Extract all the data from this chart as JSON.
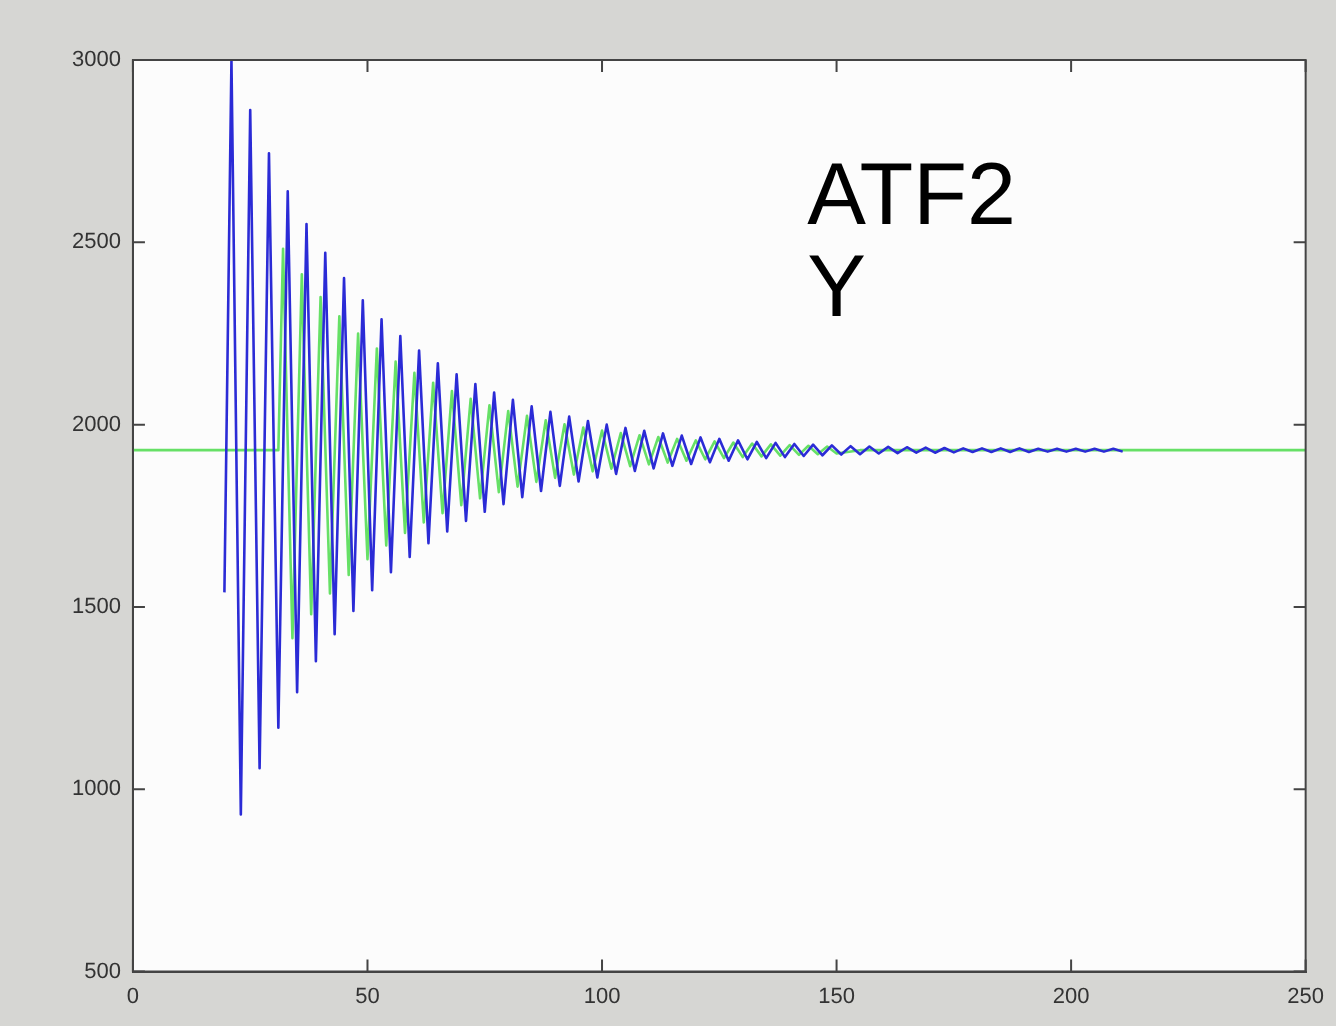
{
  "chart_data": {
    "type": "line",
    "annotations": [
      "ATF2",
      "Y"
    ],
    "xlim": [
      0,
      250
    ],
    "xticks": [
      0,
      50,
      100,
      150,
      200,
      250
    ],
    "ylim": [
      500,
      3000
    ],
    "yticks": [
      500,
      1000,
      1500,
      2000,
      2500,
      3000
    ],
    "grid": false,
    "legend": false,
    "marker": "none",
    "line_style": "solid",
    "series": [
      {
        "color": "#2b2bd6",
        "x": [
          19.5,
          21,
          23,
          25,
          27,
          29,
          31,
          33,
          35,
          37,
          39,
          41,
          43,
          45,
          47,
          49,
          51,
          53,
          55,
          57,
          59,
          61,
          63,
          65,
          67,
          69,
          71,
          73,
          75,
          77,
          79,
          81,
          83,
          85,
          87,
          89,
          91,
          93,
          95,
          97,
          99,
          101,
          103,
          105,
          107,
          109,
          111,
          113,
          115,
          117,
          119,
          121,
          123,
          125,
          127,
          129,
          131,
          133,
          135,
          137,
          139,
          141,
          143,
          145,
          147,
          149,
          151,
          153,
          155,
          157,
          159,
          161,
          163,
          165,
          167,
          169,
          171,
          173,
          175,
          177,
          179,
          181,
          183,
          185,
          187,
          189,
          191,
          193,
          195,
          197,
          199,
          201,
          203,
          205,
          207,
          209,
          211
        ],
        "values": [
          1540,
          3000,
          931,
          2863,
          1058,
          2744,
          1169,
          2640,
          1266,
          2550,
          1351,
          2471,
          1425,
          2402,
          1489,
          2341,
          1546,
          2289,
          1595,
          2243,
          1637,
          2203,
          1675,
          2168,
          1707,
          2138,
          1736,
          2111,
          1761,
          2088,
          1782,
          2068,
          1801,
          2050,
          1818,
          2035,
          1832,
          2022,
          1844,
          2010,
          1855,
          2000,
          1865,
          1991,
          1873,
          1983,
          1880,
          1976,
          1887,
          1970,
          1892,
          1965,
          1897,
          1961,
          1901,
          1957,
          1905,
          1953,
          1908,
          1950,
          1911,
          1947,
          1914,
          1945,
          1916,
          1943,
          1918,
          1941,
          1919,
          1940,
          1921,
          1939,
          1922,
          1938,
          1923,
          1937,
          1923,
          1936,
          1924,
          1935,
          1925,
          1935,
          1925,
          1935,
          1925,
          1935,
          1925,
          1934,
          1926,
          1934,
          1926,
          1934,
          1926,
          1934,
          1926,
          1934,
          1926
        ]
      },
      {
        "color": "#66e066",
        "x": [
          0,
          31,
          32,
          34,
          36,
          38,
          40,
          42,
          44,
          46,
          48,
          50,
          52,
          54,
          56,
          58,
          60,
          62,
          64,
          66,
          68,
          70,
          72,
          74,
          76,
          78,
          80,
          82,
          84,
          86,
          88,
          90,
          92,
          94,
          96,
          98,
          100,
          102,
          104,
          106,
          108,
          110,
          112,
          114,
          116,
          118,
          120,
          122,
          124,
          126,
          128,
          130,
          132,
          134,
          136,
          138,
          140,
          142,
          144,
          146,
          148,
          150,
          155,
          250
        ],
        "values": [
          1930,
          1930,
          2482,
          1414,
          2412,
          1480,
          2350,
          1537,
          2297,
          1588,
          2250,
          1631,
          2209,
          1669,
          2173,
          1703,
          2142,
          1732,
          2115,
          1757,
          2092,
          1779,
          2071,
          1798,
          2053,
          1815,
          2037,
          1830,
          2024,
          1843,
          2012,
          1854,
          2001,
          1863,
          1992,
          1872,
          1984,
          1879,
          1977,
          1886,
          1971,
          1891,
          1966,
          1896,
          1961,
          1901,
          1957,
          1905,
          1954,
          1908,
          1951,
          1911,
          1948,
          1913,
          1946,
          1915,
          1944,
          1917,
          1942,
          1919,
          1940,
          1921,
          1930,
          1930
        ]
      }
    ]
  }
}
